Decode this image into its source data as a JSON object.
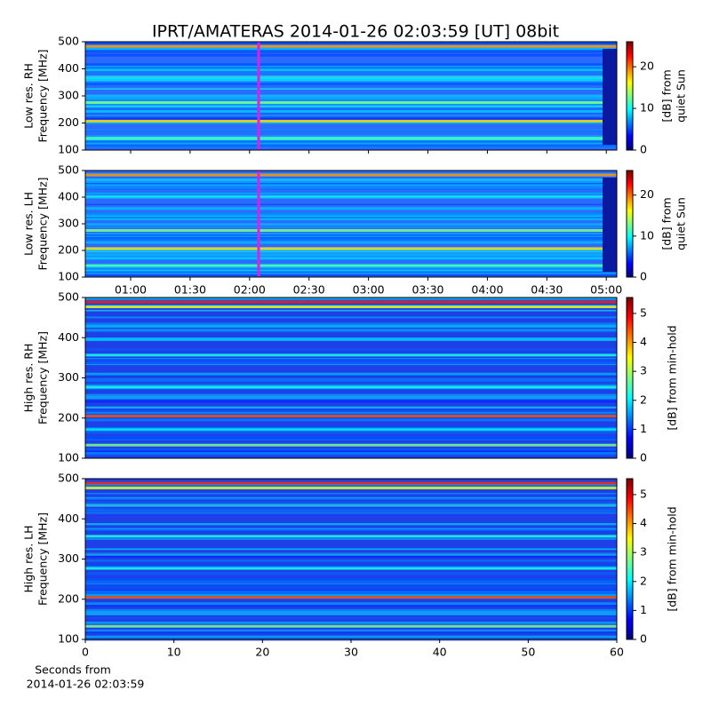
{
  "chart_data": [
    {
      "type": "spectrogram",
      "title": "IPRT/AMATERAS 2014-01-26 02:03:59 [UT]   08bit",
      "ylabel": [
        "Low res. RH",
        "Frequency [MHz]"
      ],
      "ylim": [
        100,
        500
      ],
      "yticks": [
        100,
        200,
        300,
        400,
        500
      ],
      "colorbar_label": [
        "[dB] from",
        "quiet Sun"
      ],
      "clim": [
        0,
        26
      ],
      "cticks": [
        0,
        10,
        20
      ]
    },
    {
      "type": "spectrogram",
      "ylabel": [
        "Low res. LH",
        "Frequency [MHz]"
      ],
      "ylim": [
        100,
        500
      ],
      "yticks": [
        100,
        200,
        300,
        400,
        500
      ],
      "xticks": [
        "01:00",
        "01:30",
        "02:00",
        "02:30",
        "03:00",
        "03:30",
        "04:00",
        "04:30",
        "05:00"
      ],
      "colorbar_label": [
        "[dB] from",
        "quiet Sun"
      ],
      "clim": [
        0,
        26
      ],
      "cticks": [
        0,
        10,
        20
      ]
    },
    {
      "type": "spectrogram",
      "ylabel": [
        "High res. RH",
        "Frequency [MHz]"
      ],
      "ylim": [
        100,
        500
      ],
      "yticks": [
        100,
        200,
        300,
        400,
        500
      ],
      "colorbar_label": [
        "[dB] from min-hold"
      ],
      "clim": [
        0,
        5.55
      ],
      "cticks": [
        0,
        1,
        2,
        3,
        4,
        5
      ]
    },
    {
      "type": "spectrogram",
      "ylabel": [
        "High res. LH",
        "Frequency [MHz]"
      ],
      "ylim": [
        100,
        500
      ],
      "yticks": [
        100,
        200,
        300,
        400,
        500
      ],
      "xlim": [
        0,
        60
      ],
      "xticks": [
        0,
        10,
        20,
        30,
        40,
        50,
        60
      ],
      "xlabel": [
        "Seconds from",
        "2014-01-26 02:03:59"
      ],
      "colorbar_label": [
        "[dB] from min-hold"
      ],
      "clim": [
        0,
        5.55
      ],
      "cticks": [
        0,
        1,
        2,
        3,
        4,
        5
      ]
    }
  ]
}
